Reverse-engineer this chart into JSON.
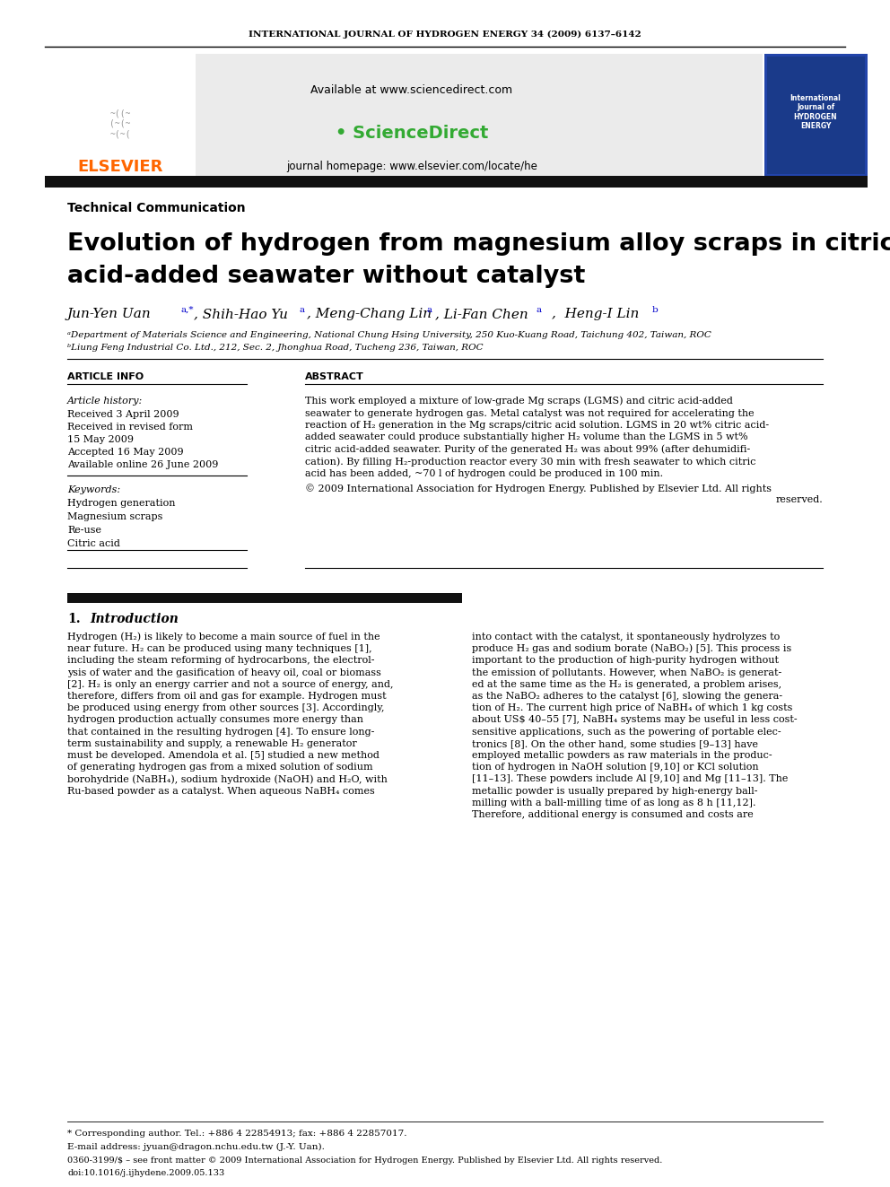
{
  "journal_header": "INTERNATIONAL JOURNAL OF HYDROGEN ENERGY 34 (2009) 6137–6142",
  "available_text": "Available at www.sciencedirect.com",
  "journal_homepage": "journal homepage: www.elsevier.com/locate/he",
  "elsevier_color": "#FF6600",
  "section_label": "Technical Communication",
  "title_line1": "Evolution of hydrogen from magnesium alloy scraps in citric",
  "title_line2": "acid-added seawater without catalyst",
  "affil_a": "ᵃDepartment of Materials Science and Engineering, National Chung Hsing University, 250 Kuo-Kuang Road, Taichung 402, Taiwan, ROC",
  "affil_b": "ᵇLiung Feng Industrial Co. Ltd., 212, Sec. 2, Jhonghua Road, Tucheng 236, Taiwan, ROC",
  "article_info_label": "ARTICLE INFO",
  "abstract_label": "ABSTRACT",
  "article_history_label": "Article history:",
  "received1": "Received 3 April 2009",
  "received2": "Received in revised form",
  "may15": "15 May 2009",
  "accepted": "Accepted 16 May 2009",
  "available_online": "Available online 26 June 2009",
  "keywords_label": "Keywords:",
  "keywords": [
    "Hydrogen generation",
    "Magnesium scraps",
    "Re-use",
    "Citric acid"
  ],
  "abstract_lines": [
    "This work employed a mixture of low-grade Mg scraps (LGMS) and citric acid-added",
    "seawater to generate hydrogen gas. Metal catalyst was not required for accelerating the",
    "reaction of H₂ generation in the Mg scraps/citric acid solution. LGMS in 20 wt% citric acid-",
    "added seawater could produce substantially higher H₂ volume than the LGMS in 5 wt%",
    "citric acid-added seawater. Purity of the generated H₂ was about 99% (after dehumidifi-",
    "cation). By filling H₂-production reactor every 30 min with fresh seawater to which citric",
    "acid has been added, ~70 l of hydrogen could be produced in 100 min."
  ],
  "copyright_line1": "© 2009 International Association for Hydrogen Energy. Published by Elsevier Ltd. All rights",
  "copyright_line2": "reserved.",
  "footnote_star": "* Corresponding author. Tel.: +886 4 22854913; fax: +886 4 22857017.",
  "footnote_email": "E-mail address: jyuan@dragon.nchu.edu.tw (J.-Y. Uan).",
  "footnote_issn": "0360-3199/$ – see front matter © 2009 International Association for Hydrogen Energy. Published by Elsevier Ltd. All rights reserved.",
  "footnote_doi": "doi:10.1016/j.ijhydene.2009.05.133",
  "intro_left_lines": [
    "Hydrogen (H₂) is likely to become a main source of fuel in the",
    "near future. H₂ can be produced using many techniques [1],",
    "including the steam reforming of hydrocarbons, the electrol-",
    "ysis of water and the gasification of heavy oil, coal or biomass",
    "[2]. H₂ is only an energy carrier and not a source of energy, and,",
    "therefore, differs from oil and gas for example. Hydrogen must",
    "be produced using energy from other sources [3]. Accordingly,",
    "hydrogen production actually consumes more energy than",
    "that contained in the resulting hydrogen [4]. To ensure long-",
    "term sustainability and supply, a renewable H₂ generator",
    "must be developed. Amendola et al. [5] studied a new method",
    "of generating hydrogen gas from a mixed solution of sodium",
    "borohydride (NaBH₄), sodium hydroxide (NaOH) and H₂O, with",
    "Ru-based powder as a catalyst. When aqueous NaBH₄ comes"
  ],
  "intro_right_lines": [
    "into contact with the catalyst, it spontaneously hydrolyzes to",
    "produce H₂ gas and sodium borate (NaBO₂) [5]. This process is",
    "important to the production of high-purity hydrogen without",
    "the emission of pollutants. However, when NaBO₂ is generat-",
    "ed at the same time as the H₂ is generated, a problem arises,",
    "as the NaBO₂ adheres to the catalyst [6], slowing the genera-",
    "tion of H₂. The current high price of NaBH₄ of which 1 kg costs",
    "about US$ 40–55 [7], NaBH₄ systems may be useful in less cost-",
    "sensitive applications, such as the powering of portable elec-",
    "tronics [8]. On the other hand, some studies [9–13] have",
    "employed metallic powders as raw materials in the produc-",
    "tion of hydrogen in NaOH solution [9,10] or KCl solution",
    "[11–13]. These powders include Al [9,10] and Mg [11–13]. The",
    "metallic powder is usually prepared by high-energy ball-",
    "milling with a ball-milling time of as long as 8 h [11,12].",
    "Therefore, additional energy is consumed and costs are"
  ],
  "bg_color": "#FFFFFF",
  "text_color": "#000000",
  "blue_color": "#0000CC",
  "orange_color": "#FF6600"
}
